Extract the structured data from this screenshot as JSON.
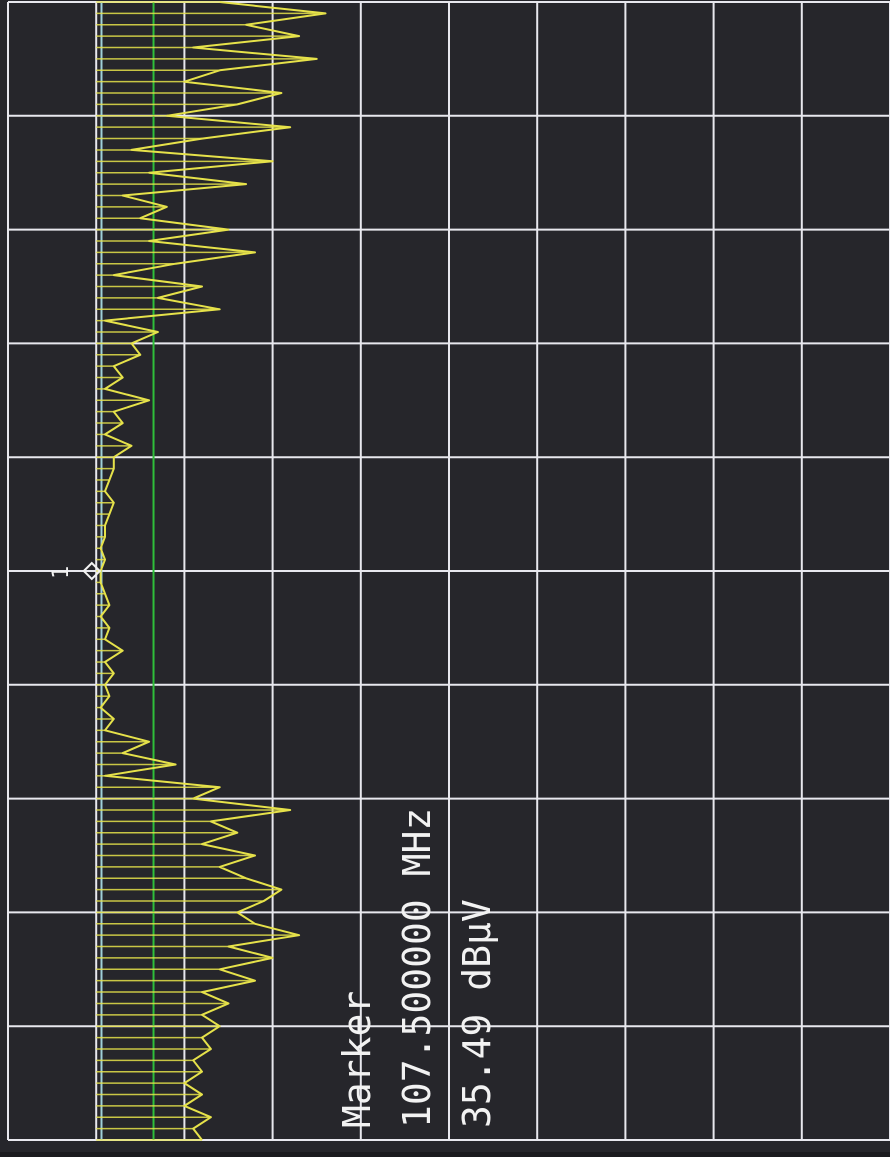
{
  "marker": {
    "label": "Marker",
    "frequency_text": "107.500000 MHz",
    "level_text": "35.49 dBµV",
    "symbol_text": "1",
    "frequency_mhz": 107.5,
    "level_dbuv": 35.49
  },
  "colors": {
    "background": "#26262b",
    "grid": "#e8e8ee",
    "trace": "#e6e24a",
    "limit_line_1": "#9fd0d8",
    "limit_line_2": "#2fbf3a",
    "marker_text": "#f2f2f2"
  },
  "chart_data": {
    "type": "line",
    "orientation": "rotated 90 degrees (frequency runs bottom to top, level runs left to right)",
    "grid": true,
    "grid_divisions": {
      "frequency": 10,
      "level": 10
    },
    "x_label": "",
    "y_label": "",
    "series": [
      {
        "type": "line",
        "points": [
          [
            0,
            12
          ],
          [
            1,
            11
          ],
          [
            2,
            13
          ],
          [
            3,
            10
          ],
          [
            4,
            12
          ],
          [
            5,
            10
          ],
          [
            6,
            12
          ],
          [
            7,
            11
          ],
          [
            8,
            13
          ],
          [
            9,
            12
          ],
          [
            10,
            14
          ],
          [
            11,
            12
          ],
          [
            12,
            15
          ],
          [
            13,
            12
          ],
          [
            14,
            18
          ],
          [
            15,
            14
          ],
          [
            16,
            20
          ],
          [
            17,
            15
          ],
          [
            18,
            23
          ],
          [
            19,
            18
          ],
          [
            20,
            16
          ],
          [
            21,
            19
          ],
          [
            22,
            21
          ],
          [
            23,
            17
          ],
          [
            24,
            14
          ],
          [
            25,
            18
          ],
          [
            26,
            12
          ],
          [
            27,
            16
          ],
          [
            28,
            13
          ],
          [
            29,
            22
          ],
          [
            30,
            11
          ],
          [
            31,
            14
          ],
          [
            32,
            1
          ],
          [
            33,
            9
          ],
          [
            34,
            3
          ],
          [
            35,
            6
          ],
          [
            36,
            1
          ],
          [
            37,
            2
          ],
          [
            38,
            0.5
          ],
          [
            39,
            1.5
          ],
          [
            40,
            1
          ],
          [
            41,
            2
          ],
          [
            42,
            1
          ],
          [
            43,
            3
          ],
          [
            44,
            1
          ],
          [
            45,
            1.5
          ],
          [
            46,
            0.5
          ],
          [
            47,
            1.5
          ],
          [
            48,
            1
          ],
          [
            49,
            0.5
          ],
          [
            50,
            0.5
          ],
          [
            51,
            1
          ],
          [
            52,
            0.5
          ],
          [
            53,
            1
          ],
          [
            54,
            1
          ],
          [
            55,
            1.5
          ],
          [
            56,
            2
          ],
          [
            57,
            1
          ],
          [
            58,
            1.5
          ],
          [
            59,
            2
          ],
          [
            60,
            2
          ],
          [
            61,
            4
          ],
          [
            62,
            1
          ],
          [
            63,
            3
          ],
          [
            64,
            2
          ],
          [
            65,
            6
          ],
          [
            66,
            1
          ],
          [
            67,
            3
          ],
          [
            68,
            2
          ],
          [
            69,
            5
          ],
          [
            70,
            4
          ],
          [
            71,
            7
          ],
          [
            72,
            1
          ],
          [
            73,
            14
          ],
          [
            74,
            7
          ],
          [
            75,
            12
          ],
          [
            76,
            2
          ],
          [
            77,
            9
          ],
          [
            78,
            18
          ],
          [
            79,
            6
          ],
          [
            80,
            15
          ],
          [
            81,
            5
          ],
          [
            82,
            8
          ],
          [
            83,
            3
          ],
          [
            84,
            17
          ],
          [
            85,
            6
          ],
          [
            86,
            20
          ],
          [
            87,
            4
          ],
          [
            88,
            12
          ],
          [
            89,
            22
          ],
          [
            90,
            8
          ],
          [
            91,
            16
          ],
          [
            92,
            21
          ],
          [
            93,
            10
          ],
          [
            94,
            14
          ],
          [
            95,
            25
          ],
          [
            96,
            11
          ],
          [
            97,
            23
          ],
          [
            98,
            17
          ],
          [
            99,
            26
          ],
          [
            100,
            14
          ]
        ]
      }
    ]
  }
}
